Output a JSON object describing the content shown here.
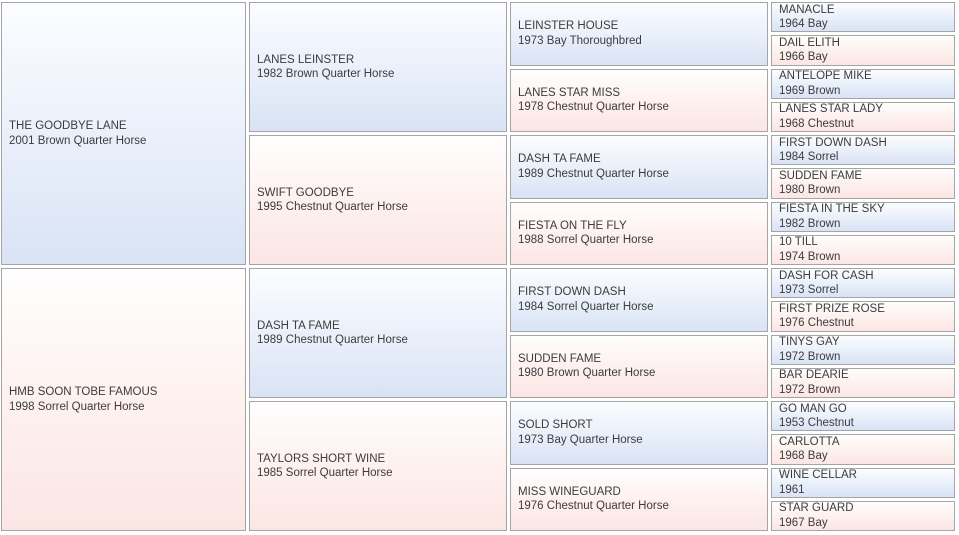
{
  "colors": {
    "sire_cell_top": "#fbfdff",
    "sire_cell_bottom": "#d9e3f5",
    "dam_cell_top": "#fffefe",
    "dam_cell_bottom": "#fbe6e4",
    "cell_border": "#a5a5a5",
    "text": "#3c3c3c",
    "background": "#ffffff"
  },
  "cells": [
    {
      "name": "THE GOODBYE LANE",
      "details": "2001 Brown Quarter Horse",
      "role": "sire",
      "generation": 1
    },
    {
      "name": "HMB SOON TOBE FAMOUS",
      "details": "1998 Sorrel Quarter Horse",
      "role": "dam",
      "generation": 1
    },
    {
      "name": "LANES LEINSTER",
      "details": "1982 Brown Quarter Horse",
      "role": "sire",
      "generation": 2
    },
    {
      "name": "SWIFT GOODBYE",
      "details": "1995 Chestnut Quarter Horse",
      "role": "dam",
      "generation": 2
    },
    {
      "name": "DASH TA FAME",
      "details": "1989 Chestnut Quarter Horse",
      "role": "sire",
      "generation": 2
    },
    {
      "name": "TAYLORS SHORT WINE",
      "details": "1985 Sorrel Quarter Horse",
      "role": "dam",
      "generation": 2
    },
    {
      "name": "LEINSTER HOUSE",
      "details": "1973 Bay Thoroughbred",
      "role": "sire",
      "generation": 3
    },
    {
      "name": "LANES STAR MISS",
      "details": "1978 Chestnut Quarter Horse",
      "role": "dam",
      "generation": 3
    },
    {
      "name": "DASH TA FAME",
      "details": "1989 Chestnut Quarter Horse",
      "role": "sire",
      "generation": 3
    },
    {
      "name": "FIESTA ON THE FLY",
      "details": "1988 Sorrel Quarter Horse",
      "role": "dam",
      "generation": 3
    },
    {
      "name": "FIRST DOWN DASH",
      "details": "1984 Sorrel Quarter Horse",
      "role": "sire",
      "generation": 3
    },
    {
      "name": "SUDDEN FAME",
      "details": "1980 Brown Quarter Horse",
      "role": "dam",
      "generation": 3
    },
    {
      "name": "SOLD SHORT",
      "details": "1973 Bay Quarter Horse",
      "role": "sire",
      "generation": 3
    },
    {
      "name": "MISS WINEGUARD",
      "details": "1976 Chestnut Quarter Horse",
      "role": "dam",
      "generation": 3
    },
    {
      "name": "MANACLE",
      "details": "1964 Bay",
      "role": "sire",
      "generation": 4
    },
    {
      "name": "DAIL ELITH",
      "details": "1966 Bay",
      "role": "dam",
      "generation": 4
    },
    {
      "name": "ANTELOPE MIKE",
      "details": "1969 Brown",
      "role": "sire",
      "generation": 4
    },
    {
      "name": "LANES STAR LADY",
      "details": "1968 Chestnut",
      "role": "dam",
      "generation": 4
    },
    {
      "name": "FIRST DOWN DASH",
      "details": "1984 Sorrel",
      "role": "sire",
      "generation": 4
    },
    {
      "name": "SUDDEN FAME",
      "details": "1980 Brown",
      "role": "dam",
      "generation": 4
    },
    {
      "name": "FIESTA IN THE SKY",
      "details": "1982 Brown",
      "role": "sire",
      "generation": 4
    },
    {
      "name": "10 TILL",
      "details": "1974 Brown",
      "role": "dam",
      "generation": 4
    },
    {
      "name": "DASH FOR CASH",
      "details": "1973 Sorrel",
      "role": "sire",
      "generation": 4
    },
    {
      "name": "FIRST PRIZE ROSE",
      "details": "1976 Chestnut",
      "role": "dam",
      "generation": 4
    },
    {
      "name": "TINYS GAY",
      "details": "1972 Brown",
      "role": "sire",
      "generation": 4
    },
    {
      "name": "BAR DEARIE",
      "details": "1972 Brown",
      "role": "dam",
      "generation": 4
    },
    {
      "name": "GO MAN GO",
      "details": "1953 Chestnut",
      "role": "sire",
      "generation": 4
    },
    {
      "name": "CARLOTTA",
      "details": "1968 Bay",
      "role": "dam",
      "generation": 4
    },
    {
      "name": "WINE CELLAR",
      "details": "1961",
      "role": "sire",
      "generation": 4
    },
    {
      "name": "STAR GUARD",
      "details": "1967 Bay",
      "role": "dam",
      "generation": 4
    }
  ]
}
